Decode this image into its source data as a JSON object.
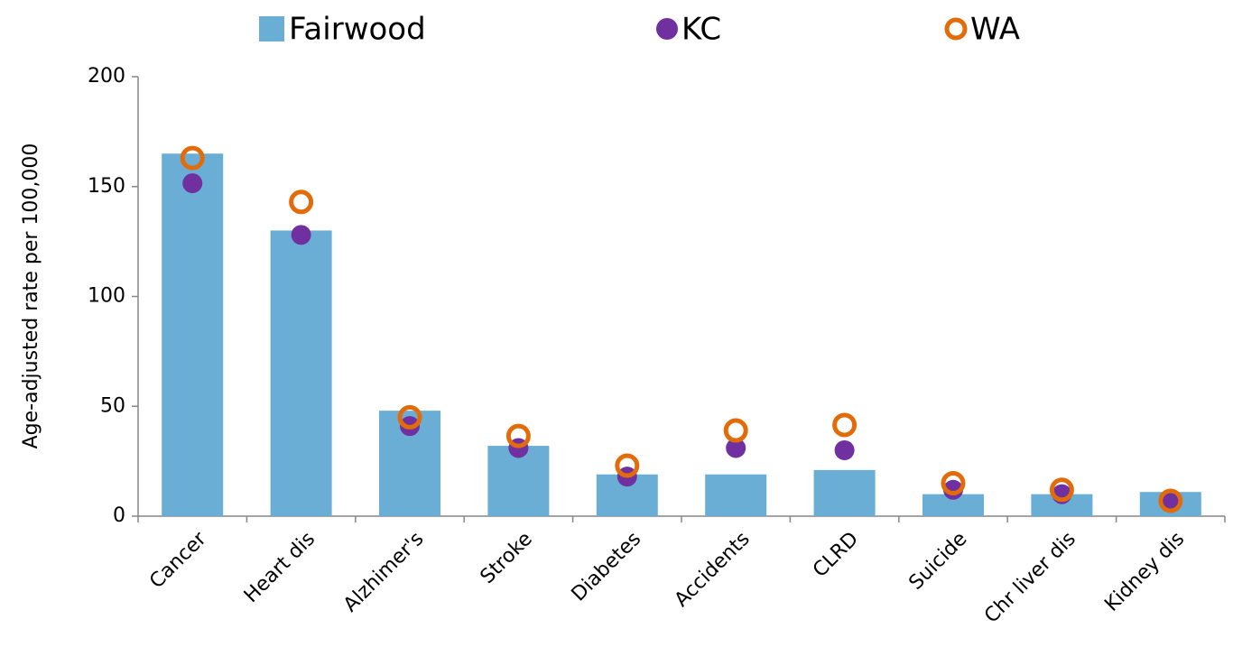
{
  "chart_data": {
    "type": "bar",
    "y_label": "Age-adjusted rate per 100,000",
    "categories": [
      "Cancer",
      "Heart dis",
      "Alzhimer's",
      "Stroke",
      "Diabetes",
      "Accidents",
      "CLRD",
      "Suicide",
      "Chr liver dis",
      "Kidney dis"
    ],
    "series": [
      {
        "name": "Fairwood",
        "color": "#6aaed6",
        "marker": "bar",
        "values": [
          165,
          130,
          48,
          32,
          19,
          19,
          21,
          10,
          10,
          11
        ]
      },
      {
        "name": "KC",
        "color": "#7030a0",
        "marker": "filled-circle",
        "values": [
          151.5,
          128,
          41,
          31,
          18,
          31,
          30,
          12,
          10,
          7
        ]
      },
      {
        "name": "WA",
        "color": "#e36c0a",
        "marker": "open-circle",
        "values": [
          163,
          143,
          45,
          36.5,
          23,
          39,
          41.5,
          15,
          12,
          7
        ]
      }
    ],
    "ylim": [
      0,
      200
    ],
    "yticks": [
      0,
      50,
      100,
      150,
      200
    ],
    "grid": false,
    "legend": "top"
  }
}
